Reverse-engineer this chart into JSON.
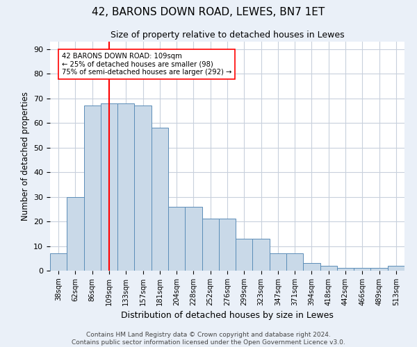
{
  "title": "42, BARONS DOWN ROAD, LEWES, BN7 1ET",
  "subtitle": "Size of property relative to detached houses in Lewes",
  "xlabel": "Distribution of detached houses by size in Lewes",
  "ylabel": "Number of detached properties",
  "bar_labels": [
    "38sqm",
    "62sqm",
    "86sqm",
    "109sqm",
    "133sqm",
    "157sqm",
    "181sqm",
    "204sqm",
    "228sqm",
    "252sqm",
    "276sqm",
    "299sqm",
    "323sqm",
    "347sqm",
    "371sqm",
    "394sqm",
    "418sqm",
    "442sqm",
    "466sqm",
    "489sqm",
    "513sqm"
  ],
  "bar_values": [
    7,
    30,
    67,
    68,
    68,
    67,
    58,
    26,
    26,
    21,
    21,
    13,
    13,
    7,
    7,
    3,
    2,
    1,
    1,
    1,
    2
  ],
  "bar_color": "#c9d9e8",
  "bar_edge_color": "#5b8db8",
  "vline_x": 3,
  "vline_color": "red",
  "annotation_text": "42 BARONS DOWN ROAD: 109sqm\n← 25% of detached houses are smaller (98)\n75% of semi-detached houses are larger (292) →",
  "annotation_box_color": "white",
  "annotation_box_edge": "red",
  "ylim": [
    0,
    93
  ],
  "yticks": [
    0,
    10,
    20,
    30,
    40,
    50,
    60,
    70,
    80,
    90
  ],
  "footer": "Contains HM Land Registry data © Crown copyright and database right 2024.\nContains public sector information licensed under the Open Government Licence v3.0.",
  "bg_color": "#eaf0f8",
  "plot_bg_color": "white",
  "grid_color": "#c8d0dc"
}
